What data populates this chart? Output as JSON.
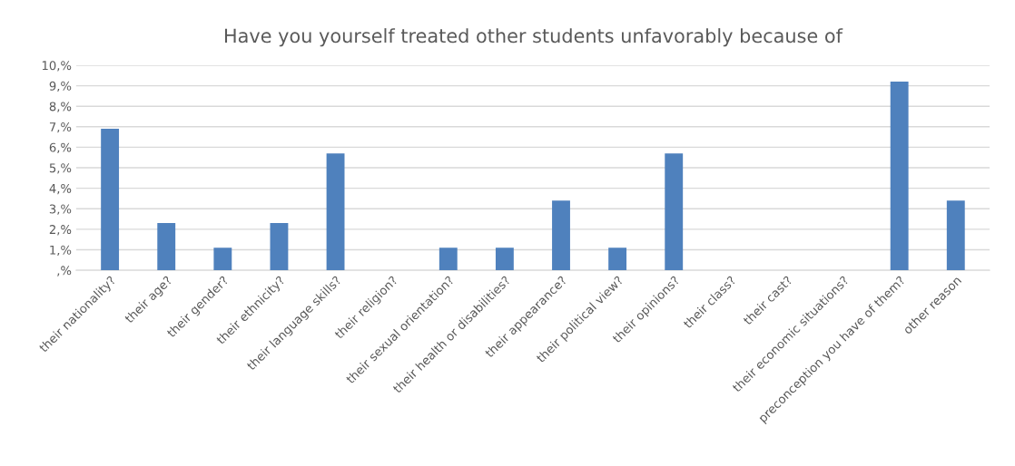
{
  "chart_data": {
    "type": "bar",
    "title": "Have you yourself treated other students unfavorably because of",
    "categories": [
      "their nationality?",
      "their age?",
      "their gender?",
      "their ethnicity?",
      "their language skills?",
      "their religion?",
      "their sexual orientation?",
      "their health or disabilities?",
      "their appearance?",
      "their political view?",
      "their opinions?",
      "their class?",
      "their cast?",
      "their economic situations?",
      "preconception you have of them?",
      "other reason"
    ],
    "values": [
      6.9,
      2.3,
      1.1,
      2.3,
      5.7,
      0,
      1.1,
      1.1,
      3.4,
      1.1,
      5.7,
      0,
      0,
      0,
      9.2,
      3.4
    ],
    "color": "#4f81bd",
    "ylim": [
      0,
      10
    ],
    "yticks": [
      {
        "value": 0,
        "label": ",%"
      },
      {
        "value": 1,
        "label": "1,%"
      },
      {
        "value": 2,
        "label": "2,%"
      },
      {
        "value": 3,
        "label": "3,%"
      },
      {
        "value": 4,
        "label": "4,%"
      },
      {
        "value": 5,
        "label": "5,%"
      },
      {
        "value": 6,
        "label": "6,%"
      },
      {
        "value": 7,
        "label": "7,%"
      },
      {
        "value": 8,
        "label": "8,%"
      },
      {
        "value": 9,
        "label": "9,%"
      },
      {
        "value": 10,
        "label": "10,%"
      }
    ],
    "grid": "y"
  }
}
